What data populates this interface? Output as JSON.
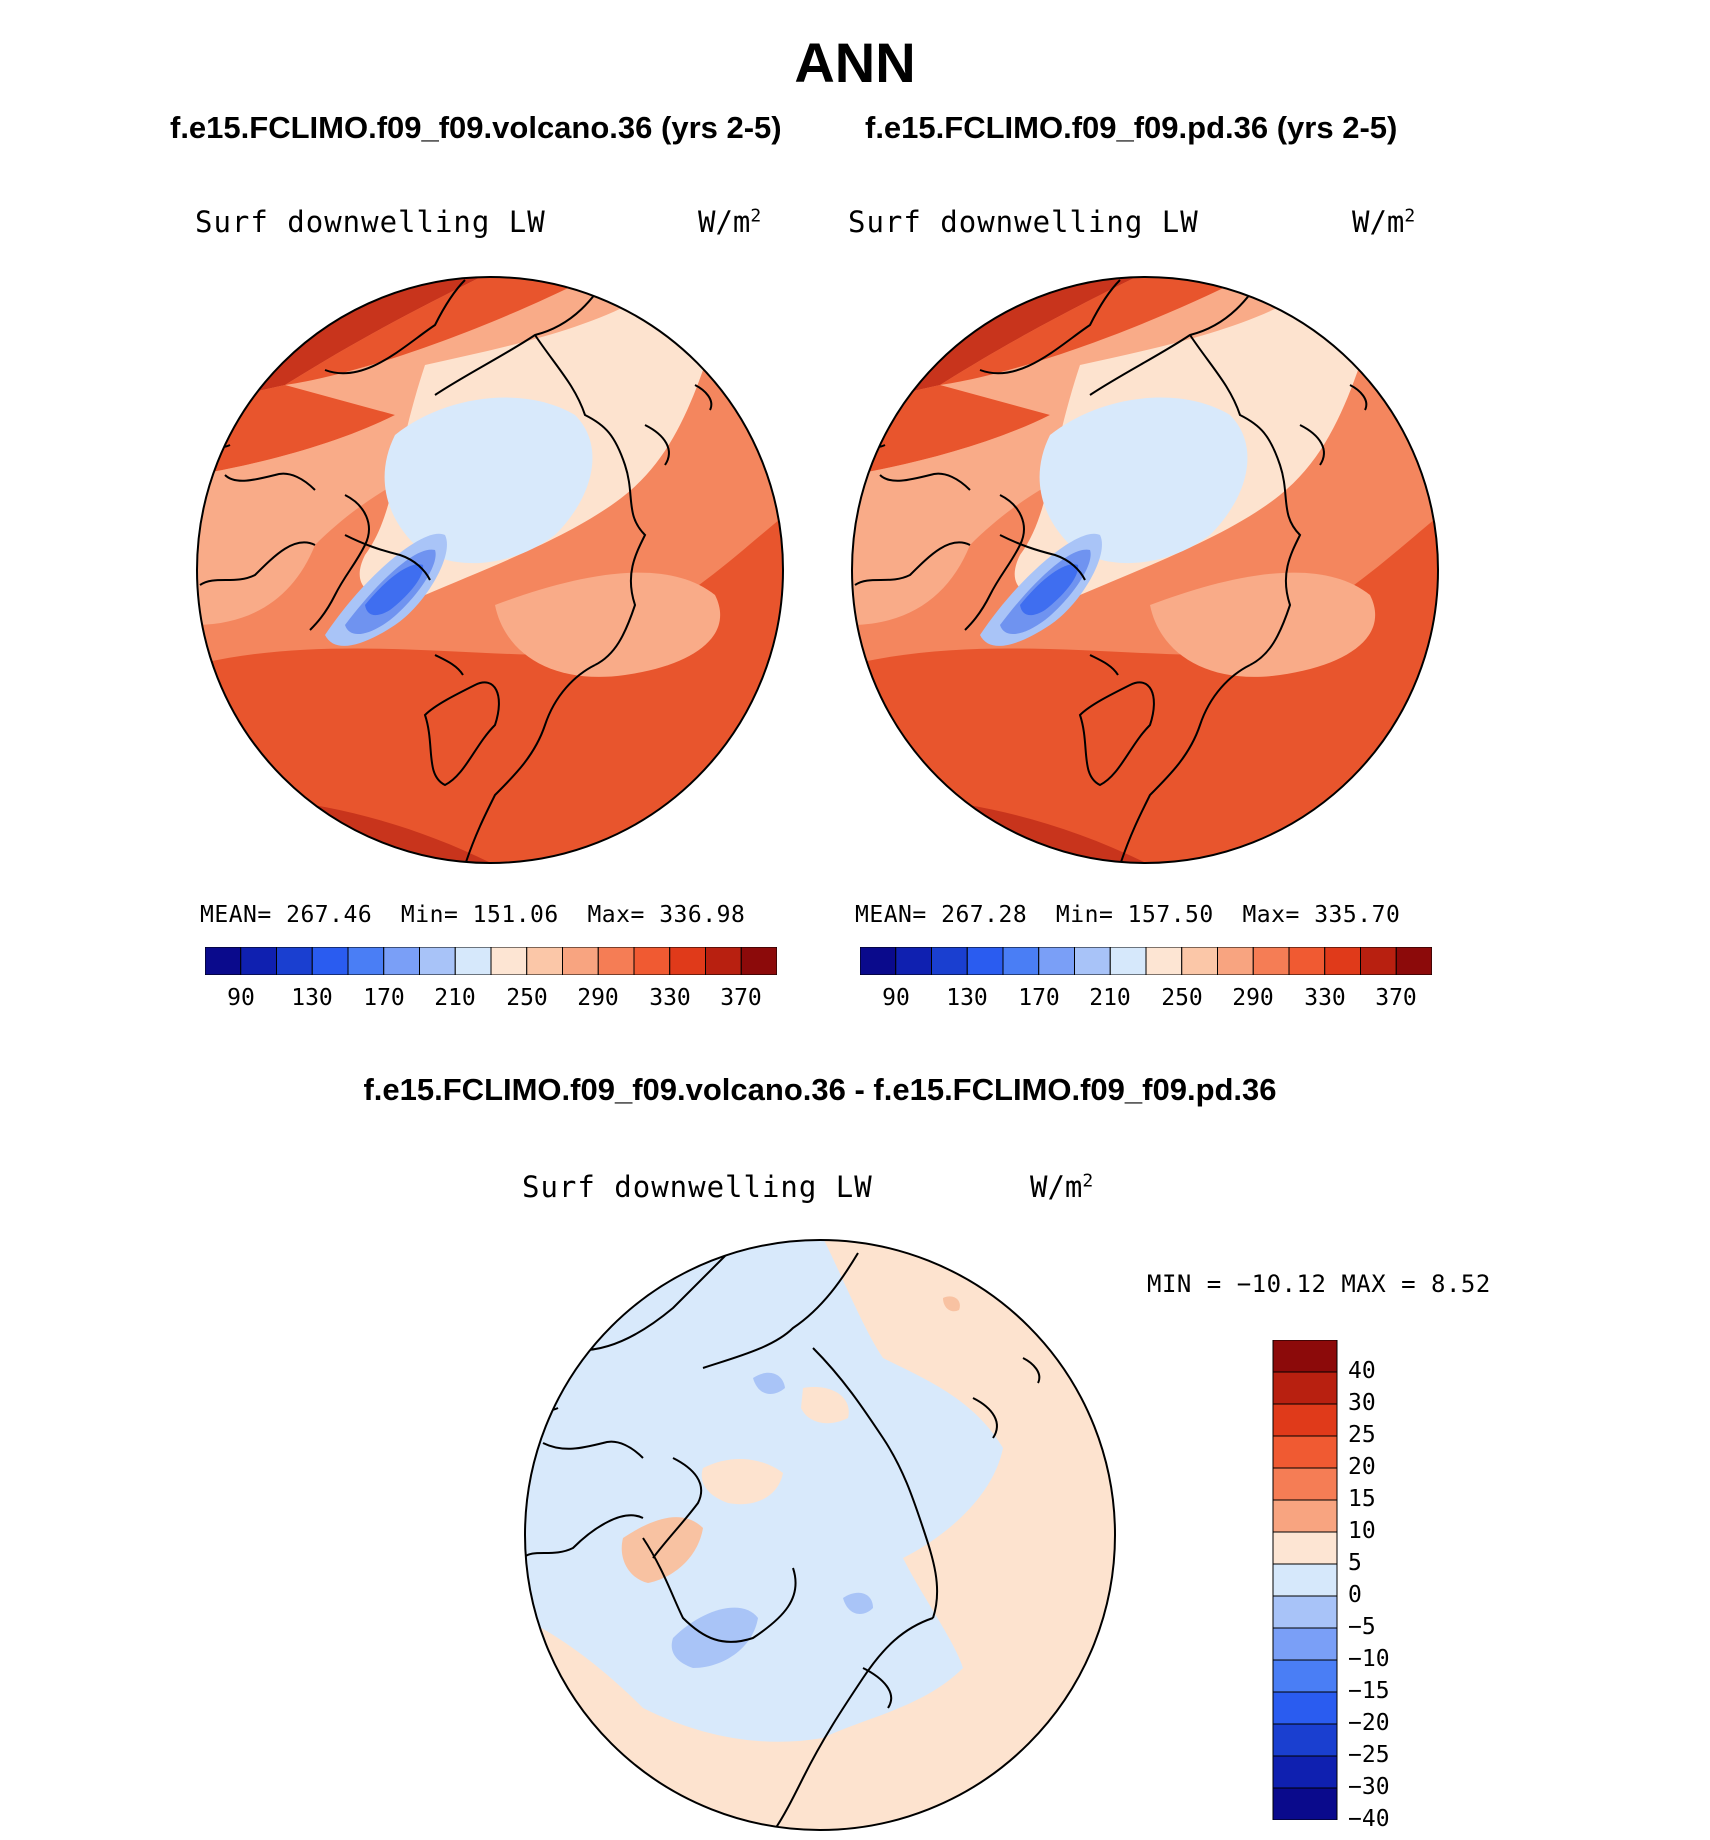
{
  "title": "ANN",
  "panels": [
    {
      "run_title": "f.e15.FCLIMO.f09_f09.volcano.36 (yrs 2-5)",
      "variable": "Surf downwelling LW",
      "units": "W/m",
      "units_sup": "2",
      "stats": {
        "mean_label": "MEAN=",
        "mean": "267.46",
        "min_label": "Min=",
        "min": "151.06",
        "max_label": "Max=",
        "max": "336.98"
      }
    },
    {
      "run_title": "f.e15.FCLIMO.f09_f09.pd.36 (yrs 2-5)",
      "variable": "Surf downwelling LW",
      "units": "W/m",
      "units_sup": "2",
      "stats": {
        "mean_label": "MEAN=",
        "mean": "267.28",
        "min_label": "Min=",
        "min": "157.50",
        "max_label": "Max=",
        "max": "335.70"
      }
    }
  ],
  "colorbar_abs": {
    "colors": [
      "#0a0a8c",
      "#0f20b0",
      "#1a3fd0",
      "#2a5cf0",
      "#4a7ef5",
      "#7a9ff7",
      "#a8c3f8",
      "#d6e8fb",
      "#fde5d3",
      "#fbc7a8",
      "#f8a480",
      "#f57d55",
      "#f05a32",
      "#e03a1a",
      "#b82010",
      "#8c0a0a"
    ],
    "tick_labels": [
      "90",
      "130",
      "170",
      "210",
      "250",
      "290",
      "330",
      "370"
    ]
  },
  "difference": {
    "title": "f.e15.FCLIMO.f09_f09.volcano.36 - f.e15.FCLIMO.f09_f09.pd.36",
    "variable": "Surf downwelling LW",
    "units": "W/m",
    "units_sup": "2",
    "minmax": "MIN = −10.12 MAX =    8.52",
    "colorbar": {
      "colors": [
        "#8c0a0a",
        "#b82010",
        "#e03a1a",
        "#f05a32",
        "#f57d55",
        "#f8a480",
        "#fde5d3",
        "#d6e8fb",
        "#a8c3f8",
        "#7a9ff7",
        "#4a7ef5",
        "#2a5cf0",
        "#1a3fd0",
        "#0f20b0",
        "#0a0a8c"
      ],
      "tick_labels": [
        "40",
        "30",
        "25",
        "20",
        "15",
        "10",
        "5",
        "0",
        "−5",
        "−10",
        "−15",
        "−20",
        "−25",
        "−30",
        "−40"
      ]
    }
  },
  "map_colors": {
    "abs_outer": "#e8552d",
    "abs_mid": "#f4865e",
    "abs_inner": "#f9ab88",
    "abs_light": "#fde3cf",
    "abs_polar": "#d8e9fb",
    "abs_green1": "#a9c4f7",
    "abs_green2": "#6f93f0",
    "abs_green3": "#3f6ef0",
    "abs_hot": "#c8341c",
    "diff_bg": "#fde3cf",
    "diff_neg": "#d8e9fb",
    "diff_neg2": "#a9c4f7",
    "diff_pos": "#f8c2a2",
    "coast": "#000000"
  }
}
